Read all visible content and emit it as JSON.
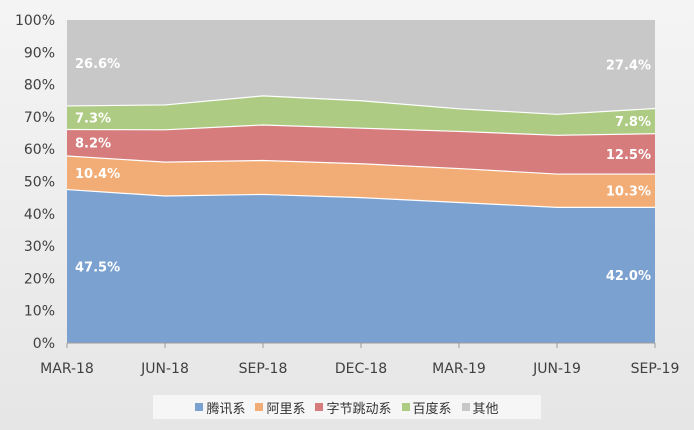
{
  "chart_data": {
    "type": "area",
    "stacked_percent": true,
    "categories": [
      "MAR-18",
      "JUN-18",
      "SEP-18",
      "DEC-18",
      "MAR-19",
      "JUN-19",
      "SEP-19"
    ],
    "ylim": [
      0,
      100
    ],
    "yticks": [
      "0%",
      "10%",
      "20%",
      "30%",
      "40%",
      "50%",
      "60%",
      "70%",
      "80%",
      "90%",
      "100%"
    ],
    "grid": false,
    "legend_position": "bottom",
    "series": [
      {
        "name": "腾讯系",
        "color": "#7ba1d1",
        "values": [
          47.5,
          45.5,
          46.0,
          45.0,
          43.5,
          42.0,
          42.0
        ]
      },
      {
        "name": "阿里系",
        "color": "#f2ad77",
        "values": [
          10.4,
          10.5,
          10.5,
          10.5,
          10.5,
          10.3,
          10.3
        ]
      },
      {
        "name": "字节跳动系",
        "color": "#d67c7c",
        "values": [
          8.2,
          10.0,
          11.0,
          11.0,
          11.5,
          12.0,
          12.5
        ]
      },
      {
        "name": "百度系",
        "color": "#aecb84",
        "values": [
          7.3,
          7.7,
          9.0,
          8.5,
          7.0,
          6.5,
          7.8
        ]
      },
      {
        "name": "其他",
        "color": "#c8c8c8",
        "values": [
          26.6,
          26.3,
          23.5,
          25.0,
          27.5,
          29.2,
          27.4
        ]
      }
    ],
    "data_labels": [
      {
        "series": 0,
        "index": 0,
        "text": "47.5%"
      },
      {
        "series": 0,
        "index": 6,
        "text": "42.0%"
      },
      {
        "series": 1,
        "index": 0,
        "text": "10.4%"
      },
      {
        "series": 1,
        "index": 6,
        "text": "10.3%"
      },
      {
        "series": 2,
        "index": 0,
        "text": "8.2%"
      },
      {
        "series": 2,
        "index": 6,
        "text": "12.5%"
      },
      {
        "series": 3,
        "index": 0,
        "text": "7.3%"
      },
      {
        "series": 3,
        "index": 6,
        "text": "7.8%"
      },
      {
        "series": 4,
        "index": 0,
        "text": "26.6%"
      },
      {
        "series": 4,
        "index": 6,
        "text": "27.4%"
      }
    ]
  }
}
